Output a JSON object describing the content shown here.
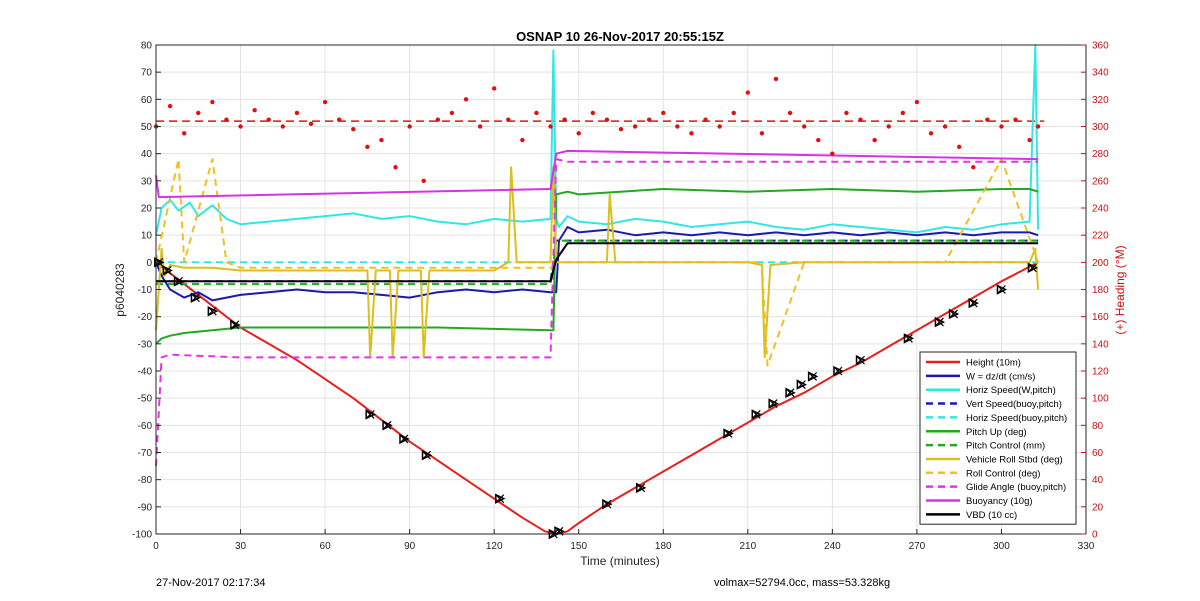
{
  "figure": {
    "title": "OSNAP 10 26-Nov-2017 20:55:15Z",
    "footer_left": "27-Nov-2017 02:17:34",
    "footer_right": "volmax=52794.0cc, mass=53.328kg"
  },
  "chart_data": {
    "type": "line",
    "title": "OSNAP 10 26-Nov-2017 20:55:15Z",
    "xlabel": "Time (minutes)",
    "ylabel": "p6040283",
    "y2label": "(+) Heading (°M)",
    "xlim": [
      0,
      330
    ],
    "ylim": [
      -100,
      80
    ],
    "y2lim": [
      0,
      360
    ],
    "xticks": [
      0,
      30,
      60,
      90,
      120,
      150,
      180,
      210,
      240,
      270,
      300,
      330
    ],
    "yticks": [
      -100,
      -90,
      -80,
      -70,
      -60,
      -50,
      -40,
      -30,
      -20,
      -10,
      0,
      10,
      20,
      30,
      40,
      50,
      60,
      70,
      80
    ],
    "y2ticks": [
      0,
      20,
      40,
      60,
      80,
      100,
      120,
      140,
      160,
      180,
      200,
      220,
      240,
      260,
      280,
      300,
      320,
      340,
      360
    ],
    "grid": true,
    "legend_position": "bottom-right",
    "series": [
      {
        "name": "Height (10m)",
        "color": "#e4201c",
        "dash": "solid",
        "x": [
          0,
          5,
          10,
          20,
          30,
          40,
          50,
          60,
          70,
          80,
          90,
          100,
          110,
          120,
          130,
          138,
          142,
          146,
          150,
          160,
          170,
          180,
          190,
          200,
          210,
          220,
          230,
          240,
          250,
          260,
          270,
          280,
          290,
          300,
          313
        ],
        "y": [
          0,
          -4,
          -8,
          -16,
          -24,
          -30,
          -36,
          -43,
          -50,
          -58,
          -66,
          -73,
          -80,
          -87,
          -94,
          -99,
          -100,
          -99,
          -96,
          -89,
          -83,
          -77,
          -71,
          -65,
          -59,
          -53,
          -48,
          -42,
          -37,
          -31,
          -25,
          -19,
          -13,
          -7,
          0
        ]
      },
      {
        "name": "W = dz/dt (cm/s)",
        "color": "#1a1aae",
        "dash": "solid",
        "x": [
          0,
          2,
          5,
          10,
          15,
          20,
          30,
          40,
          50,
          60,
          70,
          80,
          90,
          100,
          110,
          120,
          130,
          140,
          142,
          143,
          146,
          150,
          160,
          170,
          180,
          190,
          200,
          210,
          220,
          230,
          240,
          250,
          260,
          270,
          280,
          290,
          300,
          310,
          313
        ],
        "y": [
          0,
          -5,
          -10,
          -13,
          -11,
          -14,
          -12,
          -11,
          -10,
          -11,
          -11,
          -12,
          -13,
          -11,
          -10,
          -11,
          -10,
          -11,
          -11,
          8,
          13,
          11,
          12,
          10,
          11,
          10,
          11,
          10,
          11,
          10,
          11,
          10,
          11,
          10,
          11,
          10,
          11,
          11,
          10
        ]
      },
      {
        "name": "Horiz Speed(W,pitch)",
        "color": "#33e6e6",
        "dash": "solid",
        "x": [
          0,
          2,
          5,
          8,
          12,
          15,
          20,
          25,
          30,
          40,
          50,
          60,
          70,
          80,
          90,
          100,
          110,
          120,
          130,
          140,
          141,
          142,
          143,
          146,
          150,
          160,
          170,
          180,
          190,
          200,
          210,
          220,
          230,
          240,
          250,
          260,
          270,
          280,
          290,
          300,
          310,
          312,
          313
        ],
        "y": [
          10,
          20,
          23,
          19,
          22,
          17,
          21,
          16,
          14,
          15,
          16,
          17,
          18,
          16,
          17,
          15,
          14,
          16,
          15,
          16,
          78,
          16,
          13,
          17,
          15,
          14,
          16,
          15,
          13,
          14,
          15,
          13,
          12,
          14,
          13,
          12,
          11,
          13,
          12,
          14,
          15,
          80,
          12
        ]
      },
      {
        "name": "Vert Speed(buoy,pitch)",
        "color": "#1a1aae",
        "dash": "dashed",
        "x": [
          0,
          140,
          142,
          313
        ],
        "y": [
          -7,
          -7,
          8,
          8
        ]
      },
      {
        "name": "Horiz Speed(buoy,pitch)",
        "color": "#33e6e6",
        "dash": "dashed",
        "x": [
          0,
          140,
          142,
          313
        ],
        "y": [
          0,
          0,
          0,
          0
        ]
      },
      {
        "name": "Pitch Up (deg)",
        "color": "#22a822",
        "dash": "solid",
        "x": [
          0,
          2,
          5,
          10,
          20,
          30,
          60,
          100,
          140,
          141,
          142,
          146,
          150,
          180,
          210,
          240,
          270,
          300,
          310,
          313
        ],
        "y": [
          -30,
          -28,
          -27,
          -26,
          -25,
          -24,
          -24,
          -24,
          -25,
          -25,
          25,
          26,
          25,
          27,
          26,
          27,
          26,
          27,
          27,
          26
        ]
      },
      {
        "name": "Pitch Control (mm)",
        "color": "#22a822",
        "dash": "dashed",
        "x": [
          0,
          140,
          142,
          313
        ],
        "y": [
          -8,
          -8,
          8,
          8
        ]
      },
      {
        "name": "Vehicle Roll Stbd (deg)",
        "color": "#d9bf1f",
        "dash": "solid",
        "x": [
          0,
          2,
          3,
          5,
          10,
          20,
          30,
          60,
          75,
          76,
          78,
          83,
          84,
          86,
          90,
          94,
          95,
          97,
          120,
          125,
          126,
          128,
          140,
          141,
          142,
          146,
          150,
          160,
          161,
          163,
          190,
          200,
          210,
          215,
          216,
          218,
          230,
          250,
          270,
          300,
          310,
          312,
          313
        ],
        "y": [
          -25,
          5,
          -5,
          -1,
          -2,
          -2,
          -3,
          -3,
          -3,
          -35,
          -3,
          -3,
          -35,
          -3,
          -3,
          -3,
          -35,
          -3,
          -3,
          0,
          35,
          0,
          0,
          35,
          0,
          0,
          0,
          0,
          25,
          0,
          0,
          0,
          0,
          -1,
          -35,
          -1,
          0,
          0,
          0,
          0,
          0,
          5,
          -10
        ]
      },
      {
        "name": "Roll Control (deg)",
        "color": "#f0c020",
        "dash": "dashed",
        "x": [
          0,
          8,
          10,
          20,
          25,
          30,
          140,
          142,
          200,
          215,
          217,
          230,
          280,
          300,
          313
        ],
        "y": [
          0,
          38,
          0,
          38,
          0,
          -2,
          -2,
          0,
          0,
          0,
          -38,
          0,
          0,
          38,
          0
        ]
      },
      {
        "name": "Glide Angle (buoy,pitch)",
        "color": "#e632e6",
        "dash": "dashed",
        "x": [
          0,
          2,
          5,
          30,
          60,
          100,
          140,
          142,
          146,
          180,
          210,
          240,
          270,
          300,
          313
        ],
        "y": [
          -75,
          -35,
          -34,
          -35,
          -35,
          -35,
          -35,
          38,
          37,
          37,
          37,
          37,
          37,
          37,
          37
        ]
      },
      {
        "name": "Buoyancy (10g)",
        "color": "#d633e6",
        "dash": "solid",
        "x": [
          0,
          1,
          140,
          142,
          146,
          313
        ],
        "y": [
          32,
          24,
          27,
          40,
          41,
          38
        ]
      },
      {
        "name": "VBD (10 cc)",
        "color": "#000000",
        "dash": "solid",
        "x": [
          0,
          140,
          142,
          146,
          313
        ],
        "y": [
          -7,
          -7,
          1,
          7,
          7
        ]
      }
    ],
    "heading_series": {
      "name": "Heading",
      "axis": "right",
      "color": "#e01010",
      "marker": "dot",
      "x": [
        0,
        5,
        10,
        15,
        20,
        25,
        30,
        35,
        40,
        45,
        50,
        55,
        60,
        65,
        70,
        75,
        80,
        85,
        90,
        95,
        100,
        105,
        110,
        115,
        120,
        125,
        130,
        135,
        140,
        145,
        150,
        155,
        160,
        165,
        170,
        175,
        180,
        185,
        190,
        195,
        200,
        205,
        210,
        215,
        220,
        225,
        230,
        235,
        240,
        245,
        250,
        255,
        260,
        265,
        270,
        275,
        280,
        285,
        290,
        295,
        300,
        305,
        310,
        313
      ],
      "y": [
        300,
        315,
        295,
        310,
        318,
        305,
        300,
        312,
        305,
        300,
        310,
        302,
        318,
        305,
        298,
        285,
        290,
        270,
        300,
        260,
        305,
        310,
        320,
        300,
        328,
        305,
        290,
        310,
        300,
        305,
        295,
        310,
        305,
        298,
        300,
        305,
        310,
        300,
        295,
        305,
        300,
        310,
        325,
        295,
        335,
        310,
        300,
        290,
        280,
        310,
        305,
        290,
        300,
        310,
        318,
        295,
        300,
        285,
        270,
        305,
        300,
        305,
        290,
        300
      ]
    },
    "heading_reference": {
      "axis": "right",
      "value": 304,
      "color": "#e01010",
      "dash": "dashed"
    },
    "wp_markers": {
      "color": "#000000",
      "x": [
        1,
        4,
        8,
        14,
        20,
        28,
        76,
        82,
        88,
        96,
        122,
        141,
        143,
        160,
        172,
        203,
        213,
        219,
        225,
        229,
        233,
        242,
        250,
        267,
        278,
        283,
        290,
        300,
        311
      ],
      "y": [
        0,
        -3,
        -7,
        -13,
        -18,
        -23,
        -56,
        -60,
        -65,
        -71,
        -87,
        -100,
        -99,
        -89,
        -83,
        -63,
        -56,
        -52,
        -48,
        -45,
        -42,
        -40,
        -36,
        -28,
        -22,
        -19,
        -15,
        -10,
        -2
      ]
    }
  }
}
